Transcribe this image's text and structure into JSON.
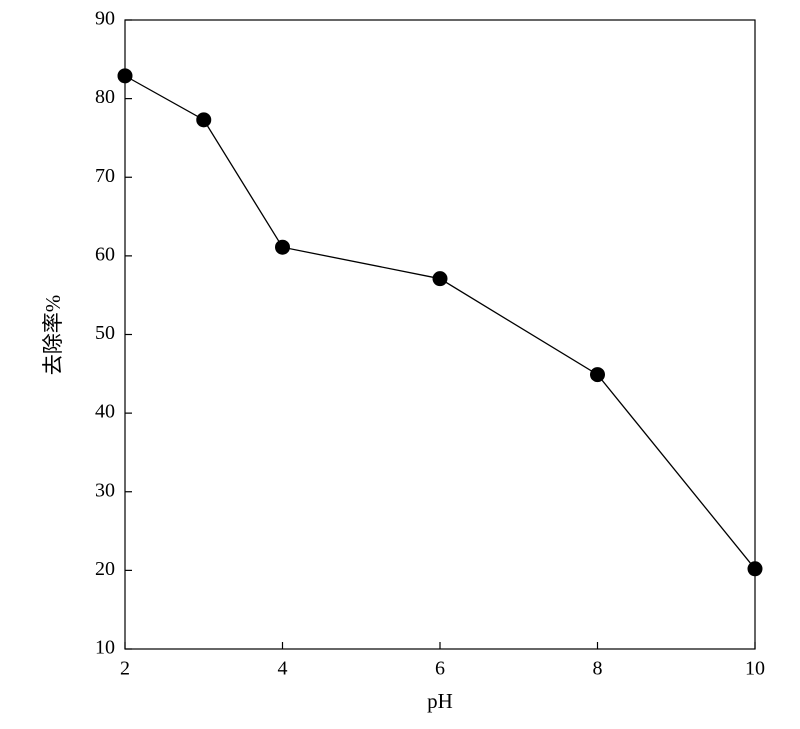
{
  "chart_data": {
    "type": "line",
    "x_label": "pH",
    "y_label": "去除率%",
    "x": [
      2,
      3,
      4,
      6,
      8,
      10
    ],
    "series": [
      {
        "color": "#000000",
        "values": [
          82.9,
          77.3,
          61.1,
          57.1,
          44.9,
          20.2
        ]
      }
    ],
    "xlim": [
      2,
      10
    ],
    "xticks": [
      2,
      4,
      6,
      8,
      10
    ],
    "ylim": [
      10,
      90
    ],
    "yticks": [
      10,
      20,
      30,
      40,
      50,
      60,
      70,
      80,
      90
    ],
    "grid": false
  }
}
